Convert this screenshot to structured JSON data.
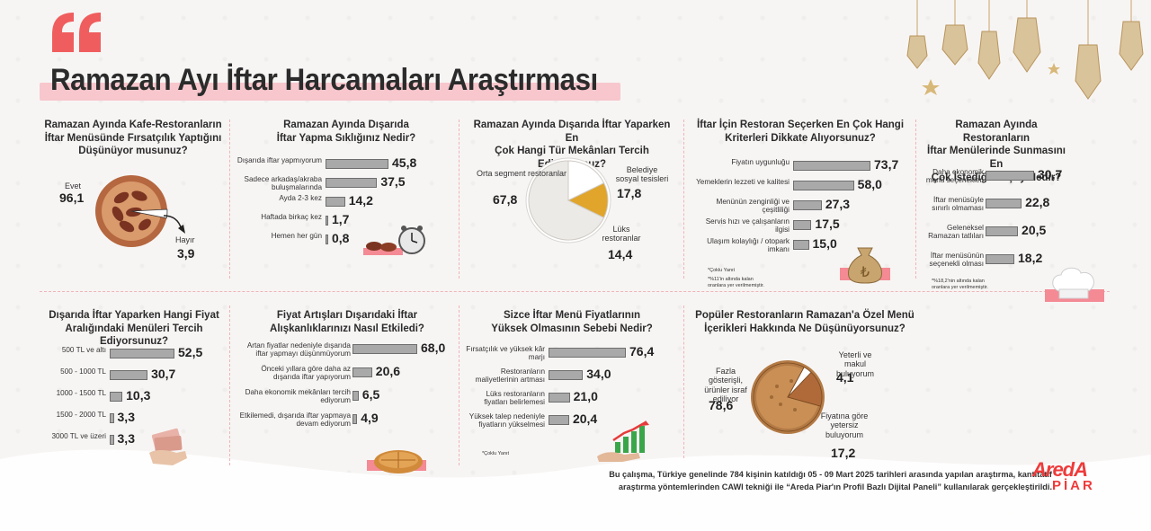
{
  "title": "Ramazan Ayı İftar Harcamaları Araştırması",
  "colors": {
    "accent": "#f05d5e",
    "bar": "#a9a9a9",
    "pie_light": "#eceae7",
    "pie_gold": "#e0a52a"
  },
  "footer": {
    "line1": "Bu çalışma, Türkiye genelinde 784 kişinin katıldığı 05 - 09 Mart 2025 tarihleri arasında yapılan araştırma, kantitatif",
    "line2": "araştırma yöntemlerinden CAWI tekniği ile “Areda Piar'ın Profil Bazlı Dijital Paneli” kullanılarak gerçekleştirildi."
  },
  "logo": {
    "top": "AredA",
    "bottom": "PİAR"
  },
  "notes": {
    "c4_a": "*Çoklu Yanıt",
    "c4_b1": "*%11'in altında kalan",
    "c4_b2": "oranlara yer verilmemiştir.",
    "c5_a1": "*%18,2'nin altında kalan",
    "c5_a2": "oranlara yer verilmemiştir.",
    "c8_a": "*Çoklu Yanıt"
  },
  "chart_data": [
    {
      "id": "c1",
      "type": "pie",
      "title_lines": [
        "Ramazan Ayında Kafe-Restoranların",
        "İftar Menüsünde Fırsatçılık Yaptığını",
        "Düşünüyor musunuz?"
      ],
      "slices": [
        {
          "label": "Evet",
          "value": 96.1
        },
        {
          "label": "Hayır",
          "value": 3.9
        }
      ],
      "value_labels": [
        "96,1",
        "3,9"
      ]
    },
    {
      "id": "c2",
      "type": "bar",
      "title_lines": [
        "Ramazan Ayında Dışarıda",
        "İftar Yapma Sıklığınız Nedir?"
      ],
      "categories": [
        "Dışarıda iftar yapmıyorum",
        "Sadece arkadaş/akraba buluşmalarında",
        "Ayda 2-3 kez",
        "Haftada birkaç kez",
        "Hemen her gün"
      ],
      "values": [
        45.8,
        37.5,
        14.2,
        1.7,
        0.8
      ],
      "value_labels": [
        "45,8",
        "37,5",
        "14,2",
        "1,7",
        "0,8"
      ]
    },
    {
      "id": "c3",
      "type": "pie",
      "title_lines": [
        "Ramazan Ayında Dışarıda İftar Yaparken En",
        "Çok Hangi Tür Mekânları Tercih Ediyorsunuz?"
      ],
      "slices": [
        {
          "label": "Orta segment restoranlar",
          "value": 67.8
        },
        {
          "label": "Belediye sosyal tesisleri",
          "value": 17.8
        },
        {
          "label": "Lüks restoranlar",
          "value": 14.4
        }
      ],
      "value_labels": [
        "67,8",
        "17,8",
        "14,4"
      ]
    },
    {
      "id": "c4",
      "type": "bar",
      "title_lines": [
        "İftar İçin Restoran Seçerken En Çok Hangi",
        "Kriterleri Dikkate Alıyorsunuz?"
      ],
      "categories": [
        "Fiyatın uygunluğu",
        "Yemeklerin lezzeti ve kalitesi",
        "Menünün zenginliği ve çeşitliliği",
        "Servis hızı ve çalışanların ilgisi",
        "Ulaşım kolaylığı / otopark imkanı"
      ],
      "values": [
        73.7,
        58.0,
        27.3,
        17.5,
        15.0
      ],
      "value_labels": [
        "73,7",
        "58,0",
        "27,3",
        "17,5",
        "15,0"
      ]
    },
    {
      "id": "c5",
      "type": "bar",
      "title_lines": [
        "Ramazan Ayında Restoranların",
        "İftar Menülerinde Sunmasını En",
        "Çok İstediğiniz Şey Nedir?"
      ],
      "categories": [
        "Daha ekonomik menü seçenekleri",
        "İftar menüsüyle sınırlı olmaması",
        "Geleneksel Ramazan tatlıları",
        "İftar menüsünün seçenekli olması"
      ],
      "values": [
        30.7,
        22.8,
        20.5,
        18.2
      ],
      "value_labels": [
        "30,7",
        "22,8",
        "20,5",
        "18,2"
      ]
    },
    {
      "id": "c6",
      "type": "bar",
      "title_lines": [
        "Dışarıda İftar Yaparken Hangi Fiyat",
        "Aralığındaki Menüleri Tercih Ediyorsunuz?"
      ],
      "categories": [
        "500 TL ve altı",
        "500 - 1000 TL",
        "1000 - 1500 TL",
        "1500 - 2000 TL",
        "3000 TL ve üzeri"
      ],
      "values": [
        52.5,
        30.7,
        10.3,
        3.3,
        3.3
      ],
      "value_labels": [
        "52,5",
        "30,7",
        "10,3",
        "3,3",
        "3,3"
      ]
    },
    {
      "id": "c7",
      "type": "bar",
      "title_lines": [
        "Fiyat Artışları Dışarıdaki İftar",
        "Alışkanlıklarınızı Nasıl Etkiledi?"
      ],
      "categories": [
        "Artan fiyatlar nedeniyle dışarıda iftar yapmayı düşünmüyorum",
        "Önceki yıllara göre daha az dışarıda iftar yapıyorum",
        "Daha ekonomik mekânları tercih ediyorum",
        "Etkilemedi, dışarıda iftar yapmaya devam ediyorum"
      ],
      "values": [
        68.0,
        20.6,
        6.5,
        4.9
      ],
      "value_labels": [
        "68,0",
        "20,6",
        "6,5",
        "4,9"
      ]
    },
    {
      "id": "c8",
      "type": "bar",
      "title_lines": [
        "Sizce İftar Menü Fiyatlarının",
        "Yüksek Olmasının Sebebi Nedir?"
      ],
      "categories": [
        "Fırsatçılık ve yüksek kâr marjı",
        "Restoranların maliyetlerinin artması",
        "Lüks restoranların fiyatları belirlemesi",
        "Yüksek talep nedeniyle fiyatların yükselmesi"
      ],
      "values": [
        76.4,
        34.0,
        21.0,
        20.4
      ],
      "value_labels": [
        "76,4",
        "34,0",
        "21,0",
        "20,4"
      ]
    },
    {
      "id": "c9",
      "type": "pie",
      "title_lines": [
        "Popüler Restoranların Ramazan'a Özel Menü",
        "İçerikleri Hakkında Ne Düşünüyorsunuz?"
      ],
      "slices": [
        {
          "label": "Fazla gösterişli, ürünler israf ediliyor",
          "value": 78.6
        },
        {
          "label": "Yeterli ve makul buluyorum",
          "value": 4.1
        },
        {
          "label": "Fiyatına göre yetersiz buluyorum",
          "value": 17.2
        }
      ],
      "value_labels": [
        "78,6",
        "4,1",
        "17,2"
      ]
    }
  ]
}
